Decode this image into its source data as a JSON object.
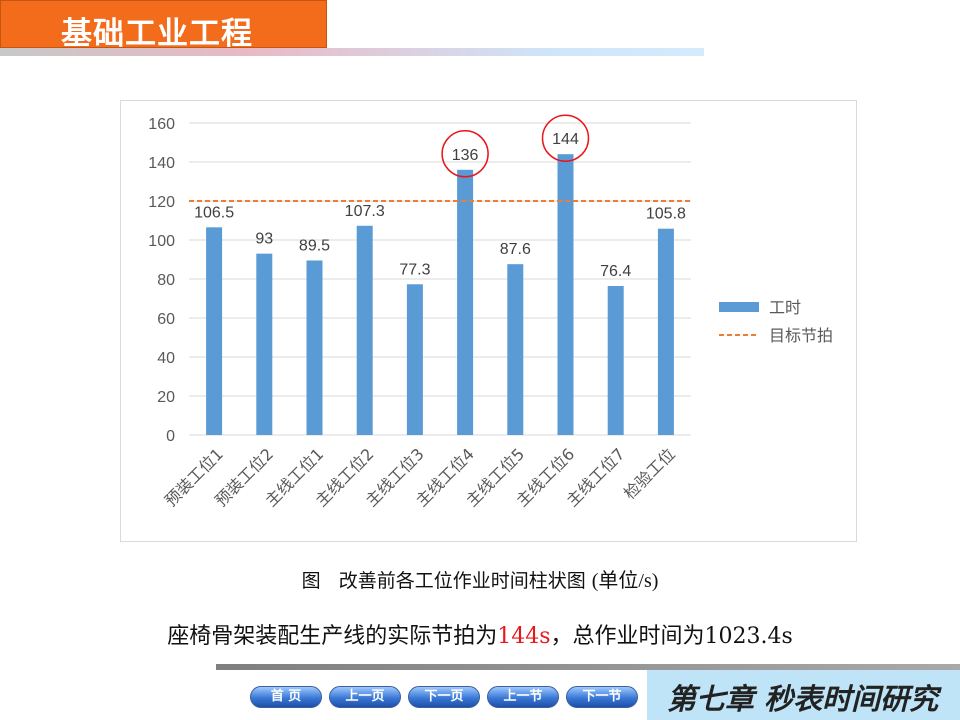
{
  "header": {
    "title": "基础工业工程"
  },
  "chart_data": {
    "type": "bar",
    "categories": [
      "预装工位1",
      "预装工位2",
      "主线工位1",
      "主线工位2",
      "主线工位3",
      "主线工位4",
      "主线工位5",
      "主线工位6",
      "主线工位7",
      "检验工位"
    ],
    "series": [
      {
        "name": "工时",
        "values": [
          106.5,
          93,
          89.5,
          107.3,
          77.3,
          136,
          87.6,
          144,
          76.4,
          105.8
        ]
      }
    ],
    "data_labels": [
      "106.5",
      "93",
      "89.5",
      "107.3",
      "77.3",
      "136",
      "87.6",
      "144",
      "76.4",
      "105.8"
    ],
    "target_line": {
      "name": "目标节拍",
      "value": 120
    },
    "ylim": [
      0,
      160
    ],
    "yticks": [
      "0",
      "20",
      "40",
      "60",
      "80",
      "100",
      "120",
      "140",
      "160"
    ],
    "highlighted": [
      "136",
      "144"
    ],
    "grid": true,
    "legend": "right",
    "colors": {
      "bar": "#5b9bd5",
      "target": "#ed7d31",
      "highlight": "#e8171b"
    }
  },
  "caption": {
    "prefix": "图",
    "text": "改善前各工位作业时间柱状图",
    "unit": "(单位/s)"
  },
  "summary": {
    "part1": "座椅骨架装配生产线的实际节拍为",
    "highlight": "144s",
    "part2": "，总作业时间为1023.4s"
  },
  "nav": {
    "home": "首 页",
    "prev_page": "上一页",
    "next_page": "下一页",
    "prev_section": "上一节",
    "next_section": "下一节"
  },
  "chapter": {
    "title": "第七章 秒表时间研究"
  }
}
